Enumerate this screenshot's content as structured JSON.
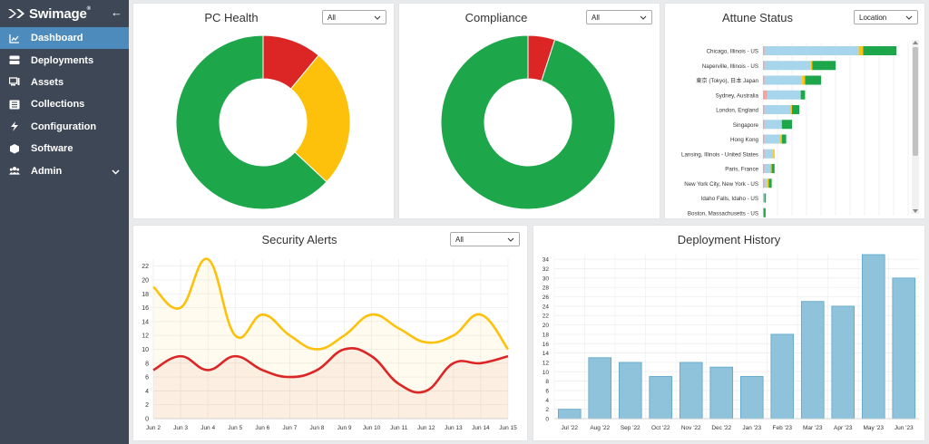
{
  "app": {
    "name": "Swimage",
    "trademark": "®"
  },
  "sidebar": {
    "items": [
      {
        "label": "Dashboard",
        "icon": "chart-line-icon",
        "active": true
      },
      {
        "label": "Deployments",
        "icon": "server-icon"
      },
      {
        "label": "Assets",
        "icon": "desktop-icon"
      },
      {
        "label": "Collections",
        "icon": "list-icon"
      },
      {
        "label": "Configuration",
        "icon": "bolt-icon"
      },
      {
        "label": "Software",
        "icon": "cube-icon"
      },
      {
        "label": "Admin",
        "icon": "users-icon",
        "expandable": true
      }
    ]
  },
  "cards": {
    "pc_health": {
      "title": "PC Health",
      "filter": "All"
    },
    "compliance": {
      "title": "Compliance",
      "filter": "All"
    },
    "attune": {
      "title": "Attune Status",
      "filter": "Location"
    },
    "security": {
      "title": "Security Alerts",
      "filter": "All"
    },
    "deployment": {
      "title": "Deployment History"
    }
  },
  "colors": {
    "green": "#1da64a",
    "yellow": "#fdc10c",
    "red": "#dc2626",
    "light_blue": "#a7d5ec",
    "bar_blue": "#8fc3dc",
    "bar_stroke": "#5aa6c9",
    "pink": "#f4a3a3",
    "sidebar": "#3e4756",
    "active": "#4d8bbd"
  },
  "chart_data": [
    {
      "type": "pie",
      "title": "PC Health",
      "segments": [
        {
          "color": "red",
          "value": 11
        },
        {
          "color": "yellow",
          "value": 26
        },
        {
          "color": "green",
          "value": 63
        }
      ]
    },
    {
      "type": "pie",
      "title": "Compliance",
      "segments": [
        {
          "color": "red",
          "value": 5
        },
        {
          "color": "green",
          "value": 95
        }
      ]
    },
    {
      "type": "bar",
      "orientation": "horizontal",
      "stacked": true,
      "title": "Attune Status",
      "categories": [
        "Chicago, Illinois - US",
        "Naperville, Illinois - US",
        "東京 (Tokyo), 日本 Japan",
        "Sydney, Australia",
        "London, England",
        "Singapore",
        "Hong Kong",
        "Lansing, Illinois - United States",
        "Paris, France",
        "New York City, New York - US",
        "Idaho Falls, Idaho - US",
        "Boston, Massachusetts - US"
      ],
      "series": [
        {
          "color": "pink",
          "values": [
            1,
            1,
            1,
            3,
            1,
            1,
            1,
            1,
            1,
            1,
            0.5,
            0.5
          ]
        },
        {
          "color": "light_blue",
          "values": [
            65,
            32,
            26,
            23,
            18,
            12,
            11,
            6,
            4,
            2,
            0.5,
            0
          ]
        },
        {
          "color": "yellow",
          "values": [
            3,
            1,
            2,
            0,
            1,
            0,
            1,
            1,
            1,
            1,
            0,
            0
          ]
        },
        {
          "color": "green",
          "values": [
            23,
            16,
            11,
            3,
            5,
            7,
            3,
            0,
            2,
            2,
            1,
            1.3
          ]
        }
      ],
      "xlim": [
        0,
        100
      ]
    },
    {
      "type": "line",
      "title": "Security Alerts",
      "x": [
        "Jun 2",
        "Jun 3",
        "Jun 4",
        "Jun 5",
        "Jun 6",
        "Jun 7",
        "Jun 8",
        "Jun 9",
        "Jun 10",
        "Jun 11",
        "Jun 12",
        "Jun 13",
        "Jun 14",
        "Jun 15"
      ],
      "series": [
        {
          "color": "yellow",
          "values": [
            19,
            16,
            23,
            12,
            15,
            12,
            10,
            12,
            15,
            13,
            11,
            12,
            15,
            10
          ]
        },
        {
          "color": "red",
          "values": [
            7,
            9,
            7,
            9,
            7,
            6,
            7,
            10,
            9,
            5,
            4,
            8,
            8,
            9
          ]
        }
      ],
      "ylim": [
        0,
        23
      ],
      "yticks": [
        0,
        2,
        4,
        6,
        8,
        10,
        12,
        14,
        16,
        18,
        20,
        22
      ],
      "grid": true
    },
    {
      "type": "bar",
      "title": "Deployment History",
      "categories": [
        "Jul '22",
        "Aug '22",
        "Sep '22",
        "Oct '22",
        "Nov '22",
        "Dec '22",
        "Jan '23",
        "Feb '23",
        "Mar '23",
        "Apr '23",
        "May '23",
        "Jun '23"
      ],
      "values": [
        2,
        13,
        12,
        9,
        12,
        11,
        9,
        18,
        25,
        24,
        35,
        30
      ],
      "ylim": [
        0,
        35
      ],
      "yticks": [
        0,
        2,
        4,
        6,
        8,
        10,
        12,
        14,
        16,
        18,
        20,
        22,
        24,
        26,
        28,
        30,
        32,
        34
      ],
      "grid": true
    }
  ]
}
